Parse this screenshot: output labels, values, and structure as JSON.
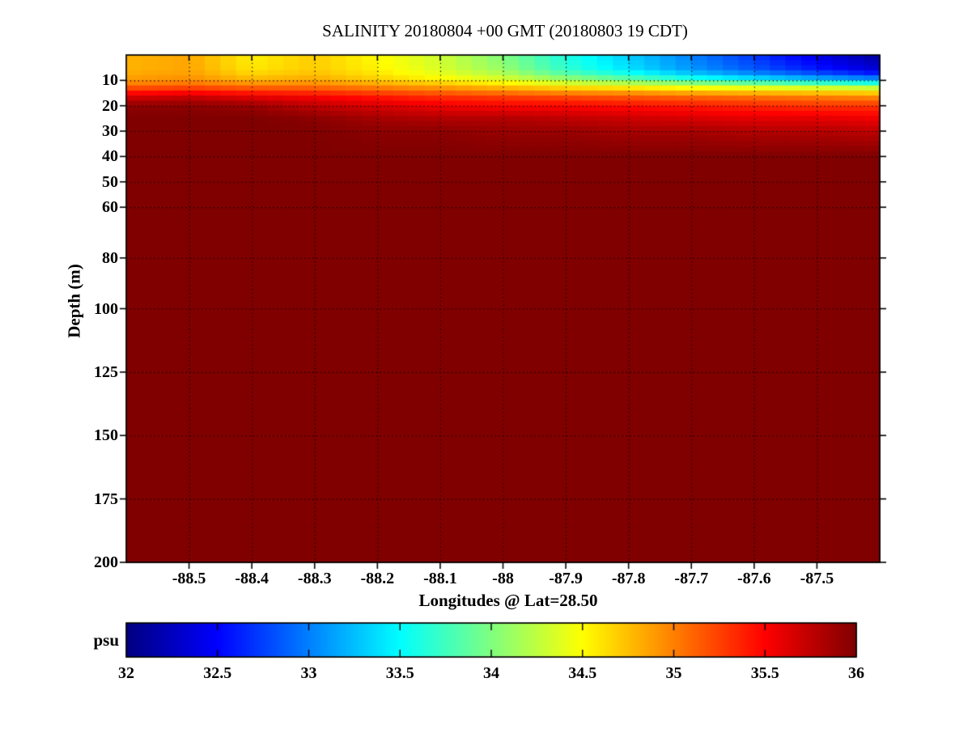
{
  "chart_data": {
    "type": "heatmap",
    "title": "SALINITY 20180804 +00 GMT (20180803 19 CDT)",
    "xlabel": "Longitudes @ Lat=28.50",
    "ylabel": "Depth (m)",
    "grid": {
      "style": "dotted",
      "color": "#000000"
    },
    "x_axis": {
      "range": [
        -88.6,
        -87.4
      ],
      "tick_labels": [
        "-88.5",
        "-88.4",
        "-88.3",
        "-88.2",
        "-88.1",
        "-88",
        "-87.9",
        "-87.8",
        "-87.7",
        "-87.6",
        "-87.5"
      ]
    },
    "y_axis": {
      "range": [
        0,
        200
      ],
      "inverted": true,
      "unit": "m",
      "tick_labels": [
        "10",
        "20",
        "30",
        "40",
        "50",
        "60",
        "80",
        "100",
        "125",
        "150",
        "175",
        "200"
      ]
    },
    "colorbar": {
      "label": "psu",
      "range": [
        32,
        36
      ],
      "colormap": "jet",
      "tick_labels": [
        "32",
        "32.5",
        "33",
        "33.5",
        "34",
        "34.5",
        "35",
        "35.5",
        "36"
      ]
    },
    "colors": {
      "background": "#ffffff",
      "deep_water_max": "#800000",
      "surface_min": "#000080",
      "axis": "#000000"
    },
    "heatmap": {
      "value_layout": "columns: values_psu[i] is the salinity profile at x_longitudes[i], sampled at y_depths_m",
      "x_longitudes": [
        -88.6,
        -88.5,
        -88.4,
        -88.3,
        -88.2,
        -88.1,
        -88.0,
        -87.9,
        -87.8,
        -87.7,
        -87.6,
        -87.5,
        -87.4
      ],
      "y_depths_m": [
        0,
        6,
        10,
        12,
        14,
        17,
        20,
        25,
        30,
        40,
        200
      ],
      "values_psu": [
        [
          34.8,
          34.8,
          34.9,
          35.05,
          35.35,
          35.7,
          35.95,
          36.0,
          36.0,
          36.0,
          36.0
        ],
        [
          34.85,
          34.85,
          34.95,
          35.1,
          35.4,
          35.75,
          35.95,
          36.0,
          36.0,
          36.0,
          36.0
        ],
        [
          34.55,
          34.6,
          34.8,
          35.0,
          35.3,
          35.65,
          35.9,
          36.0,
          36.0,
          36.0,
          36.0
        ],
        [
          34.7,
          34.7,
          34.85,
          35.0,
          35.25,
          35.55,
          35.75,
          35.95,
          36.0,
          36.0,
          36.0
        ],
        [
          34.5,
          34.55,
          34.7,
          34.9,
          35.15,
          35.45,
          35.65,
          35.85,
          35.95,
          36.0,
          36.0
        ],
        [
          34.3,
          34.35,
          34.55,
          34.8,
          35.05,
          35.35,
          35.55,
          35.8,
          35.95,
          36.0,
          36.0
        ],
        [
          34.0,
          34.1,
          34.4,
          34.65,
          34.95,
          35.3,
          35.5,
          35.8,
          35.9,
          36.0,
          36.0
        ],
        [
          33.6,
          33.7,
          34.15,
          34.5,
          34.85,
          35.25,
          35.5,
          35.75,
          35.9,
          36.0,
          36.0
        ],
        [
          33.3,
          33.4,
          33.95,
          34.4,
          34.8,
          35.2,
          35.45,
          35.7,
          35.85,
          36.0,
          36.0
        ],
        [
          33.0,
          33.1,
          33.7,
          34.3,
          34.7,
          35.15,
          35.4,
          35.65,
          35.85,
          36.0,
          36.0
        ],
        [
          32.7,
          32.85,
          33.5,
          34.2,
          34.65,
          35.1,
          35.35,
          35.6,
          35.8,
          36.0,
          36.0
        ],
        [
          32.4,
          32.6,
          33.3,
          34.1,
          34.6,
          35.05,
          35.3,
          35.6,
          35.8,
          36.0,
          36.0
        ],
        [
          32.1,
          32.35,
          33.15,
          34.0,
          34.55,
          35.0,
          35.3,
          35.55,
          35.75,
          36.0,
          36.0
        ]
      ]
    }
  }
}
